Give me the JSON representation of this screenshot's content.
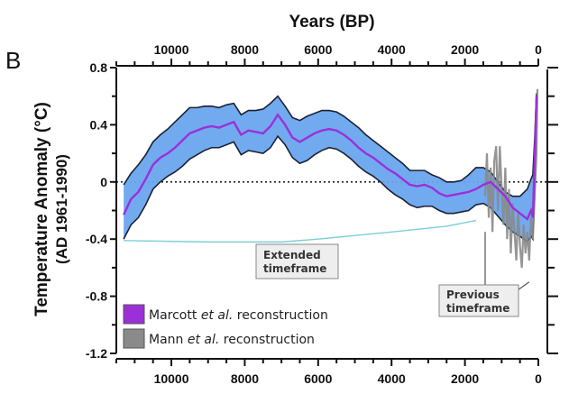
{
  "chart_data": {
    "type": "line",
    "panel_label": "B",
    "title": "Years (BP)",
    "xlabel": "Years (BP)",
    "ylabel_line1": "Temperature Anomaly (°C)",
    "ylabel_line2": "(AD 1961-1990)",
    "xlim": [
      11500,
      0
    ],
    "ylim": [
      -1.2,
      0.8
    ],
    "x_ticks": [
      10000,
      8000,
      6000,
      4000,
      2000,
      0
    ],
    "x_tick_labels": [
      "10000",
      "8000",
      "6000",
      "4000",
      "2000",
      "0"
    ],
    "y_ticks": [
      0.8,
      0.4,
      0,
      -0.4,
      -0.8,
      -1.2
    ],
    "y_tick_labels": [
      "0.8",
      "0.4",
      "0",
      "-0.4",
      "-0.8",
      "-1.2"
    ],
    "zero_line": "dotted",
    "legend": {
      "placement": "bottom-left",
      "entries": [
        {
          "name_pre": "Marcott ",
          "name_it": "et al.",
          "name_post": " reconstruction",
          "color": "#9b30d9"
        },
        {
          "name_pre": "Mann ",
          "name_it": "et al.",
          "name_post": " reconstruction",
          "color": "#8a8a8a"
        }
      ]
    },
    "annotations": [
      {
        "line1": "Extended",
        "line2": "timeframe"
      },
      {
        "line1": "Previous",
        "line2": "timeframe"
      }
    ],
    "colors": {
      "band_fill": "#6aa5ee",
      "band_edge": "#1a2233",
      "marcott": "#9b30d9",
      "mann": "#8a8a8a",
      "extended_line": "#7ccfd6",
      "previous_line": "#555555"
    },
    "series": [
      {
        "name": "Marcott et al. reconstruction",
        "x": [
          11300,
          11100,
          10900,
          10700,
          10500,
          10300,
          10100,
          9900,
          9700,
          9500,
          9300,
          9100,
          8900,
          8700,
          8500,
          8300,
          8100,
          7900,
          7700,
          7500,
          7300,
          7100,
          6900,
          6700,
          6500,
          6300,
          6100,
          5900,
          5700,
          5500,
          5300,
          5100,
          4900,
          4700,
          4500,
          4300,
          4100,
          3900,
          3700,
          3500,
          3300,
          3100,
          2900,
          2700,
          2500,
          2300,
          2100,
          1900,
          1700,
          1500,
          1300,
          1100,
          900,
          700,
          500,
          300,
          200,
          150,
          100,
          50
        ],
        "mean": [
          -0.23,
          -0.12,
          -0.07,
          0.02,
          0.12,
          0.17,
          0.2,
          0.24,
          0.29,
          0.34,
          0.36,
          0.38,
          0.39,
          0.38,
          0.4,
          0.42,
          0.33,
          0.36,
          0.35,
          0.34,
          0.39,
          0.47,
          0.4,
          0.31,
          0.28,
          0.31,
          0.34,
          0.36,
          0.37,
          0.36,
          0.33,
          0.29,
          0.24,
          0.2,
          0.17,
          0.13,
          0.09,
          0.06,
          0.02,
          -0.02,
          -0.03,
          -0.02,
          -0.04,
          -0.08,
          -0.1,
          -0.09,
          -0.08,
          -0.07,
          -0.05,
          -0.02,
          0.0,
          -0.05,
          -0.1,
          -0.18,
          -0.22,
          -0.26,
          -0.2,
          -0.25,
          0.15,
          0.6
        ],
        "upper": [
          -0.02,
          0.06,
          0.12,
          0.19,
          0.28,
          0.33,
          0.37,
          0.42,
          0.47,
          0.52,
          0.52,
          0.53,
          0.53,
          0.52,
          0.54,
          0.55,
          0.47,
          0.5,
          0.5,
          0.51,
          0.55,
          0.6,
          0.53,
          0.45,
          0.43,
          0.46,
          0.48,
          0.5,
          0.5,
          0.49,
          0.46,
          0.42,
          0.38,
          0.33,
          0.29,
          0.25,
          0.21,
          0.17,
          0.13,
          0.08,
          0.08,
          0.08,
          0.05,
          0.03,
          0.0,
          0.0,
          0.01,
          0.05,
          0.1,
          0.1,
          0.07,
          0.0,
          -0.07,
          -0.1,
          -0.1,
          -0.05,
          0.02,
          0.05,
          0.3,
          0.62
        ],
        "lower": [
          -0.4,
          -0.3,
          -0.25,
          -0.16,
          -0.05,
          0.0,
          0.04,
          0.07,
          0.11,
          0.16,
          0.19,
          0.22,
          0.24,
          0.24,
          0.26,
          0.28,
          0.19,
          0.22,
          0.21,
          0.2,
          0.24,
          0.32,
          0.26,
          0.17,
          0.13,
          0.15,
          0.19,
          0.22,
          0.24,
          0.23,
          0.2,
          0.16,
          0.11,
          0.07,
          0.04,
          0.0,
          -0.05,
          -0.09,
          -0.12,
          -0.16,
          -0.18,
          -0.17,
          -0.17,
          -0.2,
          -0.22,
          -0.22,
          -0.21,
          -0.2,
          -0.16,
          -0.15,
          -0.18,
          -0.24,
          -0.3,
          -0.35,
          -0.38,
          -0.42,
          -0.38,
          -0.4,
          -0.1,
          0.55
        ]
      },
      {
        "name": "Mann et al. reconstruction",
        "x": [
          1450,
          1400,
          1350,
          1300,
          1250,
          1200,
          1150,
          1100,
          1050,
          1000,
          950,
          900,
          850,
          800,
          750,
          700,
          650,
          600,
          550,
          500,
          450,
          400,
          350,
          300,
          250,
          200,
          150,
          100,
          50,
          25
        ],
        "values": [
          -0.1,
          0.2,
          -0.25,
          0.1,
          -0.35,
          0.15,
          0.25,
          -0.2,
          0.25,
          -0.05,
          -0.3,
          0.1,
          -0.4,
          -0.05,
          -0.5,
          -0.15,
          -0.35,
          -0.55,
          -0.2,
          -0.45,
          -0.6,
          -0.3,
          -0.5,
          -0.35,
          -0.55,
          -0.25,
          -0.4,
          -0.1,
          0.2,
          0.65
        ]
      }
    ]
  }
}
